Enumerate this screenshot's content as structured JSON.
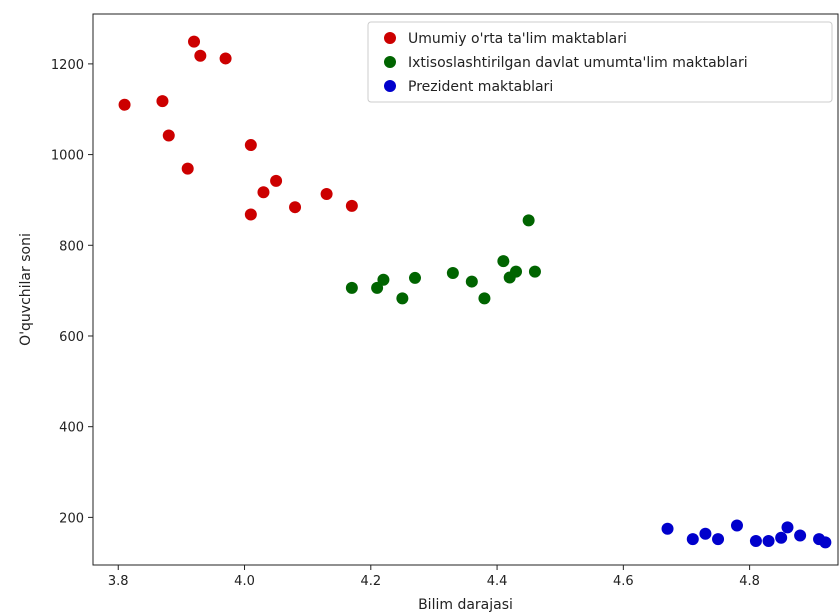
{
  "chart_data": {
    "type": "scatter",
    "title": "",
    "xlabel": "Bilim darajasi",
    "ylabel": "O'quvchilar soni",
    "xlim": [
      3.76,
      4.94
    ],
    "ylim": [
      95,
      1310
    ],
    "xticks": [
      3.8,
      4.0,
      4.2,
      4.4,
      4.6,
      4.8
    ],
    "xtick_labels": [
      "3.8",
      "4.0",
      "4.2",
      "4.4",
      "4.6",
      "4.8"
    ],
    "yticks": [
      200,
      400,
      600,
      800,
      1000,
      1200
    ],
    "ytick_labels": [
      "200",
      "400",
      "600",
      "800",
      "1000",
      "1200"
    ],
    "grid": false,
    "legend_position": "top-right",
    "series": [
      {
        "name": "Umumiy o'rta ta'lim maktablari",
        "color": "#cc0000",
        "points": [
          [
            3.81,
            1110
          ],
          [
            3.87,
            1118
          ],
          [
            3.88,
            1042
          ],
          [
            3.91,
            969
          ],
          [
            3.92,
            1249
          ],
          [
            3.93,
            1218
          ],
          [
            3.97,
            1212
          ],
          [
            4.01,
            1021
          ],
          [
            4.01,
            868
          ],
          [
            4.03,
            917
          ],
          [
            4.05,
            942
          ],
          [
            4.08,
            884
          ],
          [
            4.13,
            913
          ],
          [
            4.17,
            887
          ]
        ]
      },
      {
        "name": "Ixtisoslashtirilgan davlat umumta'lim maktablari",
        "color": "#006400",
        "points": [
          [
            4.17,
            706
          ],
          [
            4.21,
            706
          ],
          [
            4.22,
            724
          ],
          [
            4.25,
            683
          ],
          [
            4.27,
            728
          ],
          [
            4.33,
            739
          ],
          [
            4.36,
            720
          ],
          [
            4.38,
            683
          ],
          [
            4.41,
            765
          ],
          [
            4.42,
            729
          ],
          [
            4.43,
            742
          ],
          [
            4.45,
            855
          ],
          [
            4.46,
            742
          ]
        ]
      },
      {
        "name": "Prezident maktablari",
        "color": "#0000cc",
        "points": [
          [
            4.67,
            175
          ],
          [
            4.71,
            152
          ],
          [
            4.73,
            164
          ],
          [
            4.75,
            152
          ],
          [
            4.78,
            182
          ],
          [
            4.81,
            148
          ],
          [
            4.83,
            148
          ],
          [
            4.85,
            155
          ],
          [
            4.86,
            178
          ],
          [
            4.88,
            160
          ],
          [
            4.91,
            152
          ],
          [
            4.92,
            145
          ]
        ]
      }
    ]
  }
}
